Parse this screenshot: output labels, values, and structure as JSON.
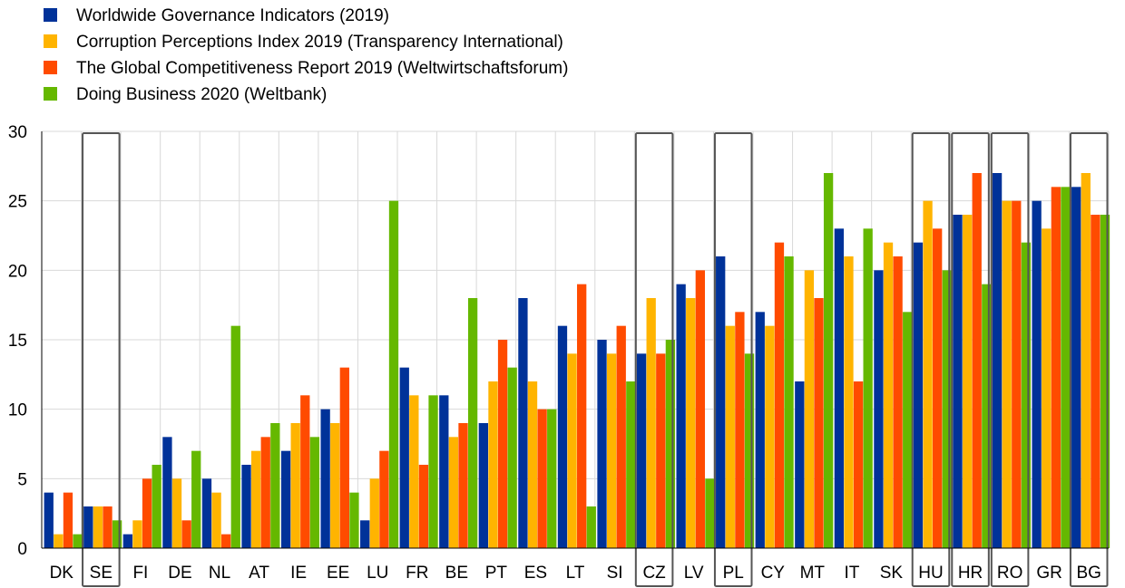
{
  "chart_data": {
    "type": "bar",
    "categories": [
      "DK",
      "SE",
      "FI",
      "DE",
      "NL",
      "AT",
      "IE",
      "EE",
      "LU",
      "FR",
      "BE",
      "PT",
      "ES",
      "LT",
      "SI",
      "CZ",
      "LV",
      "PL",
      "CY",
      "MT",
      "IT",
      "SK",
      "HU",
      "HR",
      "RO",
      "GR",
      "BG"
    ],
    "highlighted": [
      "SE",
      "CZ",
      "PL",
      "HU",
      "HR",
      "RO",
      "BG"
    ],
    "series": [
      {
        "name": "Worldwide Governance Indicators (2019)",
        "color": "#003299",
        "values": [
          4,
          3,
          1,
          8,
          5,
          6,
          7,
          10,
          2,
          13,
          11,
          9,
          18,
          16,
          15,
          14,
          19,
          21,
          17,
          12,
          23,
          20,
          22,
          24,
          27,
          25,
          26
        ]
      },
      {
        "name": "Corruption Perceptions Index 2019 (Transparency International)",
        "color": "#FFB400",
        "values": [
          1,
          3,
          2,
          5,
          4,
          7,
          9,
          9,
          5,
          11,
          8,
          12,
          12,
          14,
          14,
          18,
          18,
          16,
          16,
          20,
          21,
          22,
          25,
          24,
          25,
          23,
          27
        ]
      },
      {
        "name": "The Global Competitiveness Report 2019 (Weltwirtschaftsforum)",
        "color": "#FF4B00",
        "values": [
          4,
          3,
          5,
          2,
          1,
          8,
          11,
          13,
          7,
          6,
          9,
          15,
          10,
          19,
          16,
          14,
          20,
          17,
          22,
          18,
          12,
          21,
          23,
          27,
          25,
          26,
          24
        ]
      },
      {
        "name": "Doing Business 2020 (Weltbank)",
        "color": "#65B800",
        "values": [
          1,
          2,
          6,
          7,
          16,
          9,
          8,
          4,
          25,
          11,
          18,
          13,
          10,
          3,
          12,
          15,
          5,
          14,
          21,
          27,
          23,
          17,
          20,
          19,
          22,
          26,
          24
        ]
      }
    ],
    "ylim": [
      0,
      30
    ],
    "yticks": [
      "0",
      "5",
      "10",
      "15",
      "20",
      "25",
      "30"
    ],
    "grid": true,
    "legend_position": "top-left"
  }
}
